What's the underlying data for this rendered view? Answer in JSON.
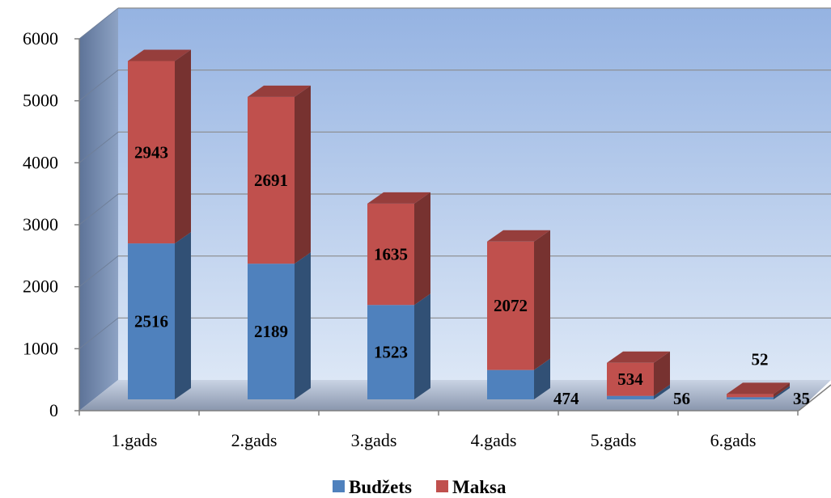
{
  "chart_data": {
    "type": "bar",
    "stacked": true,
    "three_d": true,
    "categories": [
      "1.gads",
      "2.gads",
      "3.gads",
      "4.gads",
      "5.gads",
      "6.gads"
    ],
    "series": [
      {
        "name": "Budžets",
        "values": [
          2516,
          2189,
          1523,
          474,
          56,
          35
        ]
      },
      {
        "name": "Maksa",
        "values": [
          2943,
          2691,
          1635,
          2072,
          534,
          52
        ]
      }
    ],
    "ylim": [
      0,
      6000
    ],
    "yticks": [
      0,
      1000,
      2000,
      3000,
      4000,
      5000,
      6000
    ],
    "grid": true,
    "legend": "bottom",
    "colors": {
      "budzets": "#4f81bd",
      "maksa": "#c0504d",
      "backwall_top": "#95b3e2",
      "backwall_bottom": "#dce7f6"
    }
  }
}
